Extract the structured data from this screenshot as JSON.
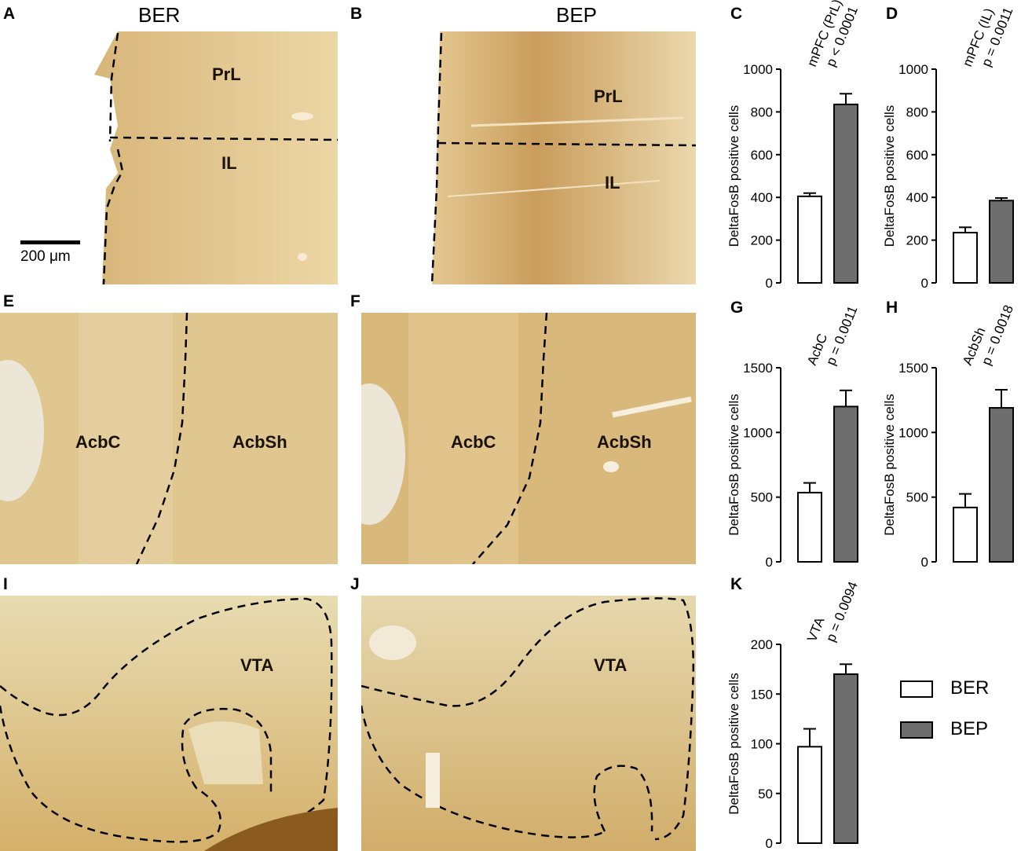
{
  "panels": {
    "A": "A",
    "B": "B",
    "C": "C",
    "D": "D",
    "E": "E",
    "F": "F",
    "G": "G",
    "H": "H",
    "I": "I",
    "J": "J",
    "K": "K"
  },
  "groups": {
    "left": "BER",
    "right": "BEP"
  },
  "regions": {
    "prl_a": "PrL",
    "il_a": "IL",
    "prl_b": "PrL",
    "il_b": "IL",
    "acbc_e": "AcbC",
    "acbsh_e": "AcbSh",
    "acbc_f": "AcbC",
    "acbsh_f": "AcbSh",
    "vta_i": "VTA",
    "vta_j": "VTA"
  },
  "scale_bar": "200 μm",
  "colors": {
    "ber": "#ffffff",
    "bep": "#6e6e6e",
    "tissue": "#e2c78c"
  },
  "legend": [
    {
      "label": "BER",
      "color": "#ffffff"
    },
    {
      "label": "BEP",
      "color": "#6e6e6e"
    }
  ],
  "chart_data": [
    {
      "panel": "C",
      "type": "bar",
      "categories": [
        "BER",
        "BEP"
      ],
      "values": [
        405,
        835
      ],
      "errors": [
        15,
        50
      ],
      "annotation": [
        "mPFC (PrL)",
        "p < 0.0001"
      ],
      "ylabel": "DeltaFosB positive cells",
      "ylim": [
        0,
        1000
      ],
      "yticks": [
        0,
        200,
        400,
        600,
        800,
        1000
      ]
    },
    {
      "panel": "D",
      "type": "bar",
      "categories": [
        "BER",
        "BEP"
      ],
      "values": [
        235,
        385
      ],
      "errors": [
        25,
        12
      ],
      "annotation": [
        "mPFC (IL)",
        "p = 0.0011"
      ],
      "ylabel": "DeltaFosB positive cells",
      "ylim": [
        0,
        1000
      ],
      "yticks": [
        0,
        200,
        400,
        600,
        800,
        1000
      ]
    },
    {
      "panel": "G",
      "type": "bar",
      "categories": [
        "BER",
        "BEP"
      ],
      "values": [
        535,
        1200
      ],
      "errors": [
        75,
        125
      ],
      "annotation": [
        "AcbC",
        "p = 0.0011"
      ],
      "ylabel": "DeltaFosB positive cells",
      "ylim": [
        0,
        1500
      ],
      "yticks": [
        0,
        500,
        1000,
        1500
      ]
    },
    {
      "panel": "H",
      "type": "bar",
      "categories": [
        "BER",
        "BEP"
      ],
      "values": [
        420,
        1190
      ],
      "errors": [
        105,
        140
      ],
      "annotation": [
        "AcbSh",
        "p = 0.0018"
      ],
      "ylabel": "DeltaFosB positive cells",
      "ylim": [
        0,
        1500
      ],
      "yticks": [
        0,
        500,
        1000,
        1500
      ]
    },
    {
      "panel": "K",
      "type": "bar",
      "categories": [
        "BER",
        "BEP"
      ],
      "values": [
        97,
        170
      ],
      "errors": [
        18,
        10
      ],
      "annotation": [
        "VTA",
        "p = 0.0094"
      ],
      "ylabel": "DeltaFosB positive cells",
      "ylim": [
        0,
        200
      ],
      "yticks": [
        0,
        50,
        100,
        150,
        200
      ]
    }
  ]
}
